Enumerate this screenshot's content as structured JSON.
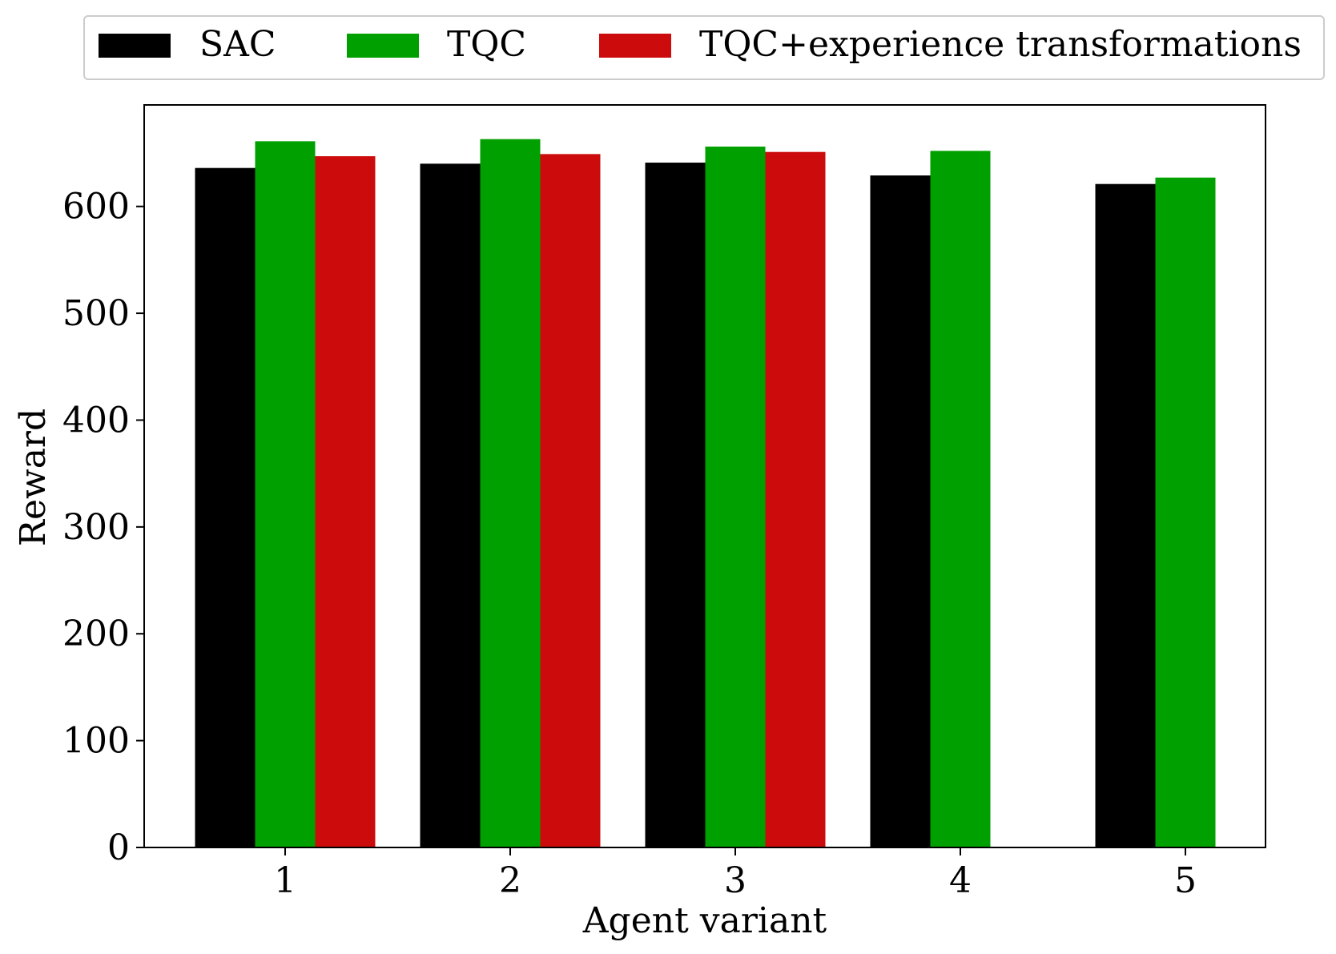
{
  "chart_data": {
    "type": "bar",
    "title": "",
    "xlabel": "Agent variant",
    "ylabel": "Reward",
    "categories": [
      "1",
      "2",
      "3",
      "4",
      "5"
    ],
    "ylim": [
      0,
      695
    ],
    "yticks": [
      0,
      100,
      200,
      300,
      400,
      500,
      600
    ],
    "grid": false,
    "legend": {
      "placement": "top",
      "columns": 3,
      "frame": true
    },
    "series": [
      {
        "name": "SAC",
        "color": "#000000",
        "values": [
          636,
          640,
          641,
          629,
          621
        ]
      },
      {
        "name": "TQC",
        "color": "#00a000",
        "values": [
          661,
          663,
          656,
          652,
          627
        ]
      },
      {
        "name": "TQC+experience transformations",
        "color": "#cc0c0c",
        "values": [
          647,
          649,
          651,
          null,
          null
        ]
      }
    ]
  }
}
